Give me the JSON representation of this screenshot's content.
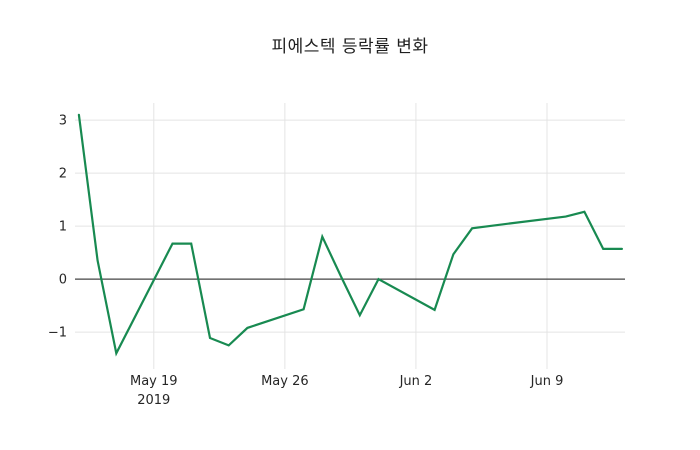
{
  "title": "피에스텍 등락률 변화",
  "colors": {
    "line": "#188a51",
    "grid": "#e4e4e4",
    "zero_line": "#444444",
    "tick_text": "#262626",
    "title_text": "#1f1f1f",
    "background": "#ffffff"
  },
  "chart_data": {
    "type": "line",
    "title": "피에스텍 등락률 변화",
    "xlabel": "",
    "ylabel": "",
    "grid": true,
    "legend": false,
    "line_color": "#188a51",
    "series": [
      {
        "name": "피에스텍 등락률",
        "x": [
          "2019-05-15",
          "2019-05-16",
          "2019-05-17",
          "2019-05-20",
          "2019-05-21",
          "2019-05-22",
          "2019-05-23",
          "2019-05-24",
          "2019-05-27",
          "2019-05-28",
          "2019-05-29",
          "2019-05-30",
          "2019-05-31",
          "2019-06-03",
          "2019-06-04",
          "2019-06-05",
          "2019-06-07",
          "2019-06-10",
          "2019-06-11",
          "2019-06-12",
          "2019-06-13"
        ],
        "values": [
          3.1,
          0.35,
          -1.4,
          0.67,
          0.67,
          -1.11,
          -1.25,
          -0.92,
          -0.57,
          0.8,
          0.05,
          -0.68,
          0.0,
          -0.58,
          0.47,
          0.96,
          1.05,
          1.18,
          1.27,
          0.57,
          0.57
        ]
      }
    ],
    "x_ticks": [
      {
        "date": "2019-05-19",
        "label": "May 19",
        "sublabel": "2019"
      },
      {
        "date": "2019-05-26",
        "label": "May 26"
      },
      {
        "date": "2019-06-02",
        "label": "Jun 2"
      },
      {
        "date": "2019-06-09",
        "label": "Jun 9"
      }
    ],
    "y_ticks": [
      {
        "value": 3,
        "label": "3"
      },
      {
        "value": 2,
        "label": "2"
      },
      {
        "value": 1,
        "label": "1"
      },
      {
        "value": 0,
        "label": "0"
      },
      {
        "value": -1,
        "label": "−1"
      }
    ],
    "ylim": [
      -1.62,
      3.38
    ],
    "xlim": [
      "2019-05-14T19:00:00Z",
      "2019-06-13T04:00:00Z"
    ]
  }
}
